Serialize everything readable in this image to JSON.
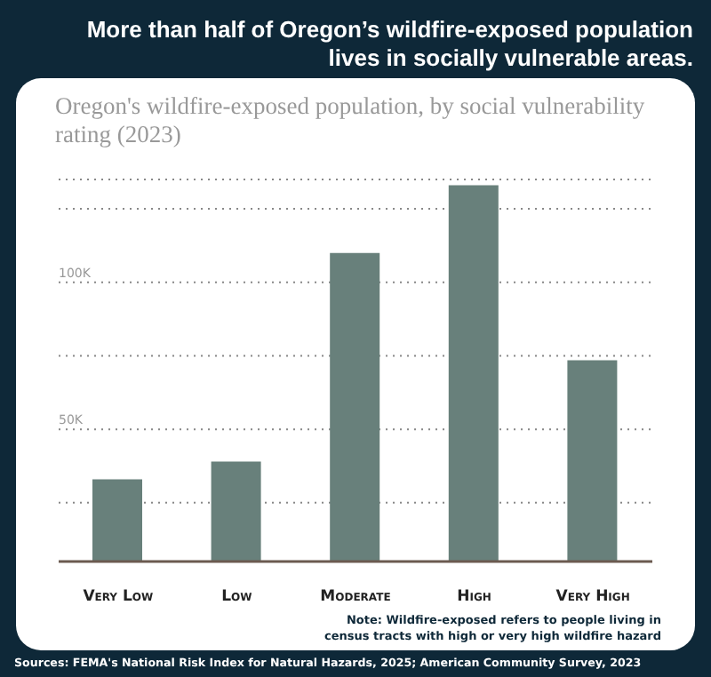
{
  "chart_data": {
    "type": "bar",
    "title": "More than half of Oregon’s wildfire-exposed population lives in socially vulnerable areas.",
    "subtitle": "Oregon's wildfire-exposed population, by social vulnerability rating (2023)",
    "categories": [
      "Very Low",
      "Low",
      "Moderate",
      "High",
      "Very High"
    ],
    "values": [
      33000,
      39000,
      110000,
      133000,
      73500
    ],
    "color": "#68807b",
    "ylim": [
      5000,
      135000
    ],
    "yticks": [
      {
        "value": 25000,
        "label": null
      },
      {
        "value": 50000,
        "label": "50K"
      },
      {
        "value": 75000,
        "label": null
      },
      {
        "value": 100000,
        "label": "100K"
      },
      {
        "value": 125000,
        "label": null
      }
    ],
    "grid": "y",
    "legend": false,
    "annotations": [
      "Note: Wildfire-exposed refers to people living in census tracts with high or very high wildfire hazard",
      "Sources: FEMA's National Risk Index for Natural Hazards, 2025; American Community Survey, 2023"
    ]
  }
}
